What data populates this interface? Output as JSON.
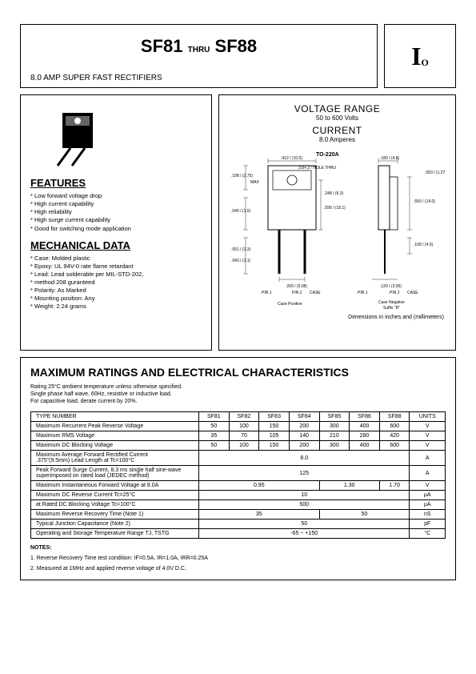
{
  "header": {
    "title_left": "SF81",
    "title_mid": "THRU",
    "title_right": "SF88",
    "subtitle": "8.0 AMP SUPER FAST RECTIFIERS",
    "logo_main": "I",
    "logo_sub": "O"
  },
  "features": {
    "heading": "FEATURES",
    "items": [
      "Low forward voltage drop",
      "High current capability",
      "High reliability",
      "High surge current capability",
      "Good for switching mode application"
    ]
  },
  "mechanical": {
    "heading": "MECHANICAL DATA",
    "items": [
      "Case: Molded plastic",
      "Epoxy: UL 94V-0 rate flame retardant",
      "Lead: Lead solderable per MIL-STD-202,",
      "  method 208 guranteed",
      "Polarity: As Marked",
      "Mounting position: Any",
      "Weight: 2.24 grams"
    ]
  },
  "diagram": {
    "voltage_head": "VOLTAGE RANGE",
    "voltage_val": "50 to 600 Volts",
    "current_head": "CURRENT",
    "current_val": "8.0 Amperes",
    "pkg_label": "TO-220A",
    "dims_note": "Dimensions in inches and (millimeters)",
    "case_pos": "Case Positive",
    "case_neg": "Case Negative",
    "suffix": "Suffix \"R\"",
    "pin1": "PIN 1",
    "pin2": "PIN 2",
    "case_lbl": "CASE",
    "dims": {
      "d1": ".412 / (10.5)",
      "d2": "3.8+.2 / HOLE THRU",
      "d3": ".180 / (4.8)",
      "d4": ".108 / (2.75)",
      "d5": "MAX",
      "d6": ".248 / (6.3)",
      "d7": ".595 / (15.1)",
      "d8": ".040 / (1.0)",
      "d9": ".051 / (1.3)",
      "d10": ".043 / (1.1)",
      "d11": ".550 / (14.0)",
      "d12": ".158 / (4.0)",
      "d13": ".200 / (5.08)",
      "d14": ".120 / (3.05)",
      "d15": ".050 / (1.27)"
    }
  },
  "ratings": {
    "heading": "MAXIMUM RATINGS AND ELECTRICAL CHARACTERISTICS",
    "note": "Rating 25°C ambient temperature unless otherwise specified.\nSingle phase half wave, 60Hz, resistive or inductive load.\nFor capacitive load, derate current by 20%.",
    "columns": [
      "TYPE NUMBER",
      "SF81",
      "SF82",
      "SF83",
      "SF84",
      "SF85",
      "SF86",
      "SF88",
      "UNITS"
    ],
    "rows": [
      {
        "param": "Maximum Recurrent Peak Reverse Voltage",
        "vals": [
          "50",
          "100",
          "150",
          "200",
          "300",
          "400",
          "600"
        ],
        "unit": "V"
      },
      {
        "param": "Maximum RMS Voltage",
        "vals": [
          "35",
          "70",
          "105",
          "140",
          "210",
          "280",
          "420"
        ],
        "unit": "V"
      },
      {
        "param": "Maximum DC Blocking Voltage",
        "vals": [
          "50",
          "100",
          "150",
          "200",
          "300",
          "400",
          "600"
        ],
        "unit": "V"
      },
      {
        "param": "Maximum Average Forward Rectified Current\n.375\"(9.5mm) Lead Length at Tc=100°C",
        "span": "8.0",
        "unit": "A"
      },
      {
        "param": "Peak Forward Surge Current, 8.3 ms single half sine-wave\nsuperimposed on rated load (JEDEC method)",
        "span": "125",
        "unit": "A"
      },
      {
        "param": "Maximum Instantaneous Forward Voltage at 8.0A",
        "groups": [
          {
            "span": 4,
            "val": "0.95"
          },
          {
            "span": 2,
            "val": "1.30"
          },
          {
            "span": 1,
            "val": "1.70"
          }
        ],
        "unit": "V"
      },
      {
        "param": "Maximum DC Reverse Current        Tc=25°C",
        "span": "10",
        "unit": "µA"
      },
      {
        "param": "at Rated DC Blocking Voltage        Tc=100°C",
        "span": "500",
        "unit": "µA"
      },
      {
        "param": "Maximum Reverse Recovery Time (Note 1)",
        "groups": [
          {
            "span": 4,
            "val": "35"
          },
          {
            "span": 3,
            "val": "50"
          }
        ],
        "unit": "nS"
      },
      {
        "param": "Typical Junction Capacitance (Note 2)",
        "span": "50",
        "unit": "pF"
      },
      {
        "param": "Operating and Storage Temperature Range TJ, TSTG",
        "span": "-65 ~ +150",
        "unit": "°C"
      }
    ],
    "notes_head": "NOTES:",
    "note1": "1. Reverse Recovery Time test condition: IF=0.5A, IR=1.0A, IRR=0.25A",
    "note2": "2. Measured at 1MHz and applied reverse voltage of 4.0V D.C."
  },
  "colors": {
    "border": "#000000",
    "text": "#000000",
    "bg": "#ffffff"
  }
}
